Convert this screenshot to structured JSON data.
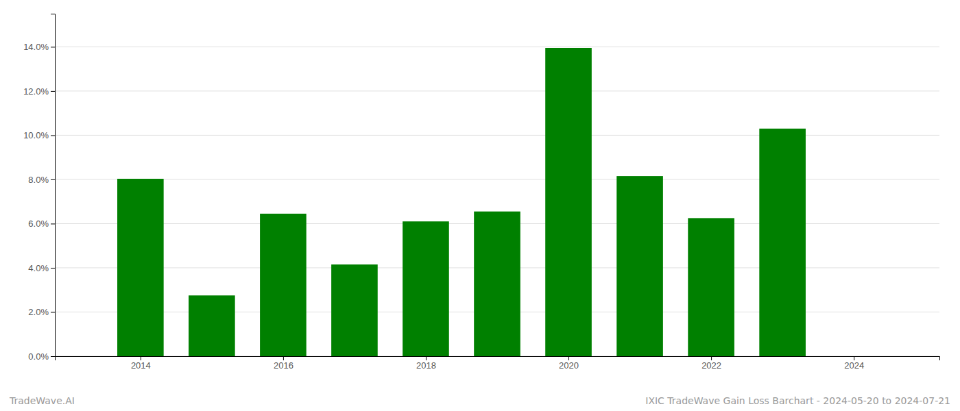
{
  "chart_data": {
    "type": "bar",
    "x": [
      2014,
      2015,
      2016,
      2017,
      2018,
      2019,
      2020,
      2021,
      2022,
      2023,
      2024
    ],
    "values": [
      0.0803,
      0.0275,
      0.0645,
      0.0415,
      0.061,
      0.0655,
      0.1395,
      0.0815,
      0.0625,
      0.103,
      0.0
    ],
    "color": "#008000",
    "xlim": [
      2012.8,
      2025.2
    ],
    "xticks": [
      2014,
      2016,
      2018,
      2020,
      2022,
      2024
    ],
    "ylim": [
      0,
      0.155
    ],
    "yticks": [
      {
        "value": 0.0,
        "label": "0.0%"
      },
      {
        "value": 0.02,
        "label": "2.0%"
      },
      {
        "value": 0.04,
        "label": "4.0%"
      },
      {
        "value": 0.06,
        "label": "6.0%"
      },
      {
        "value": 0.08,
        "label": "8.0%"
      },
      {
        "value": 0.1,
        "label": "10.0%"
      },
      {
        "value": 0.12,
        "label": "12.0%"
      },
      {
        "value": 0.14,
        "label": "14.0%"
      }
    ],
    "grid": true,
    "annotations": [
      "TradeWave.AI",
      "IXIC TradeWave Gain Loss Barchart - 2024-05-20 to 2024-07-21"
    ]
  }
}
